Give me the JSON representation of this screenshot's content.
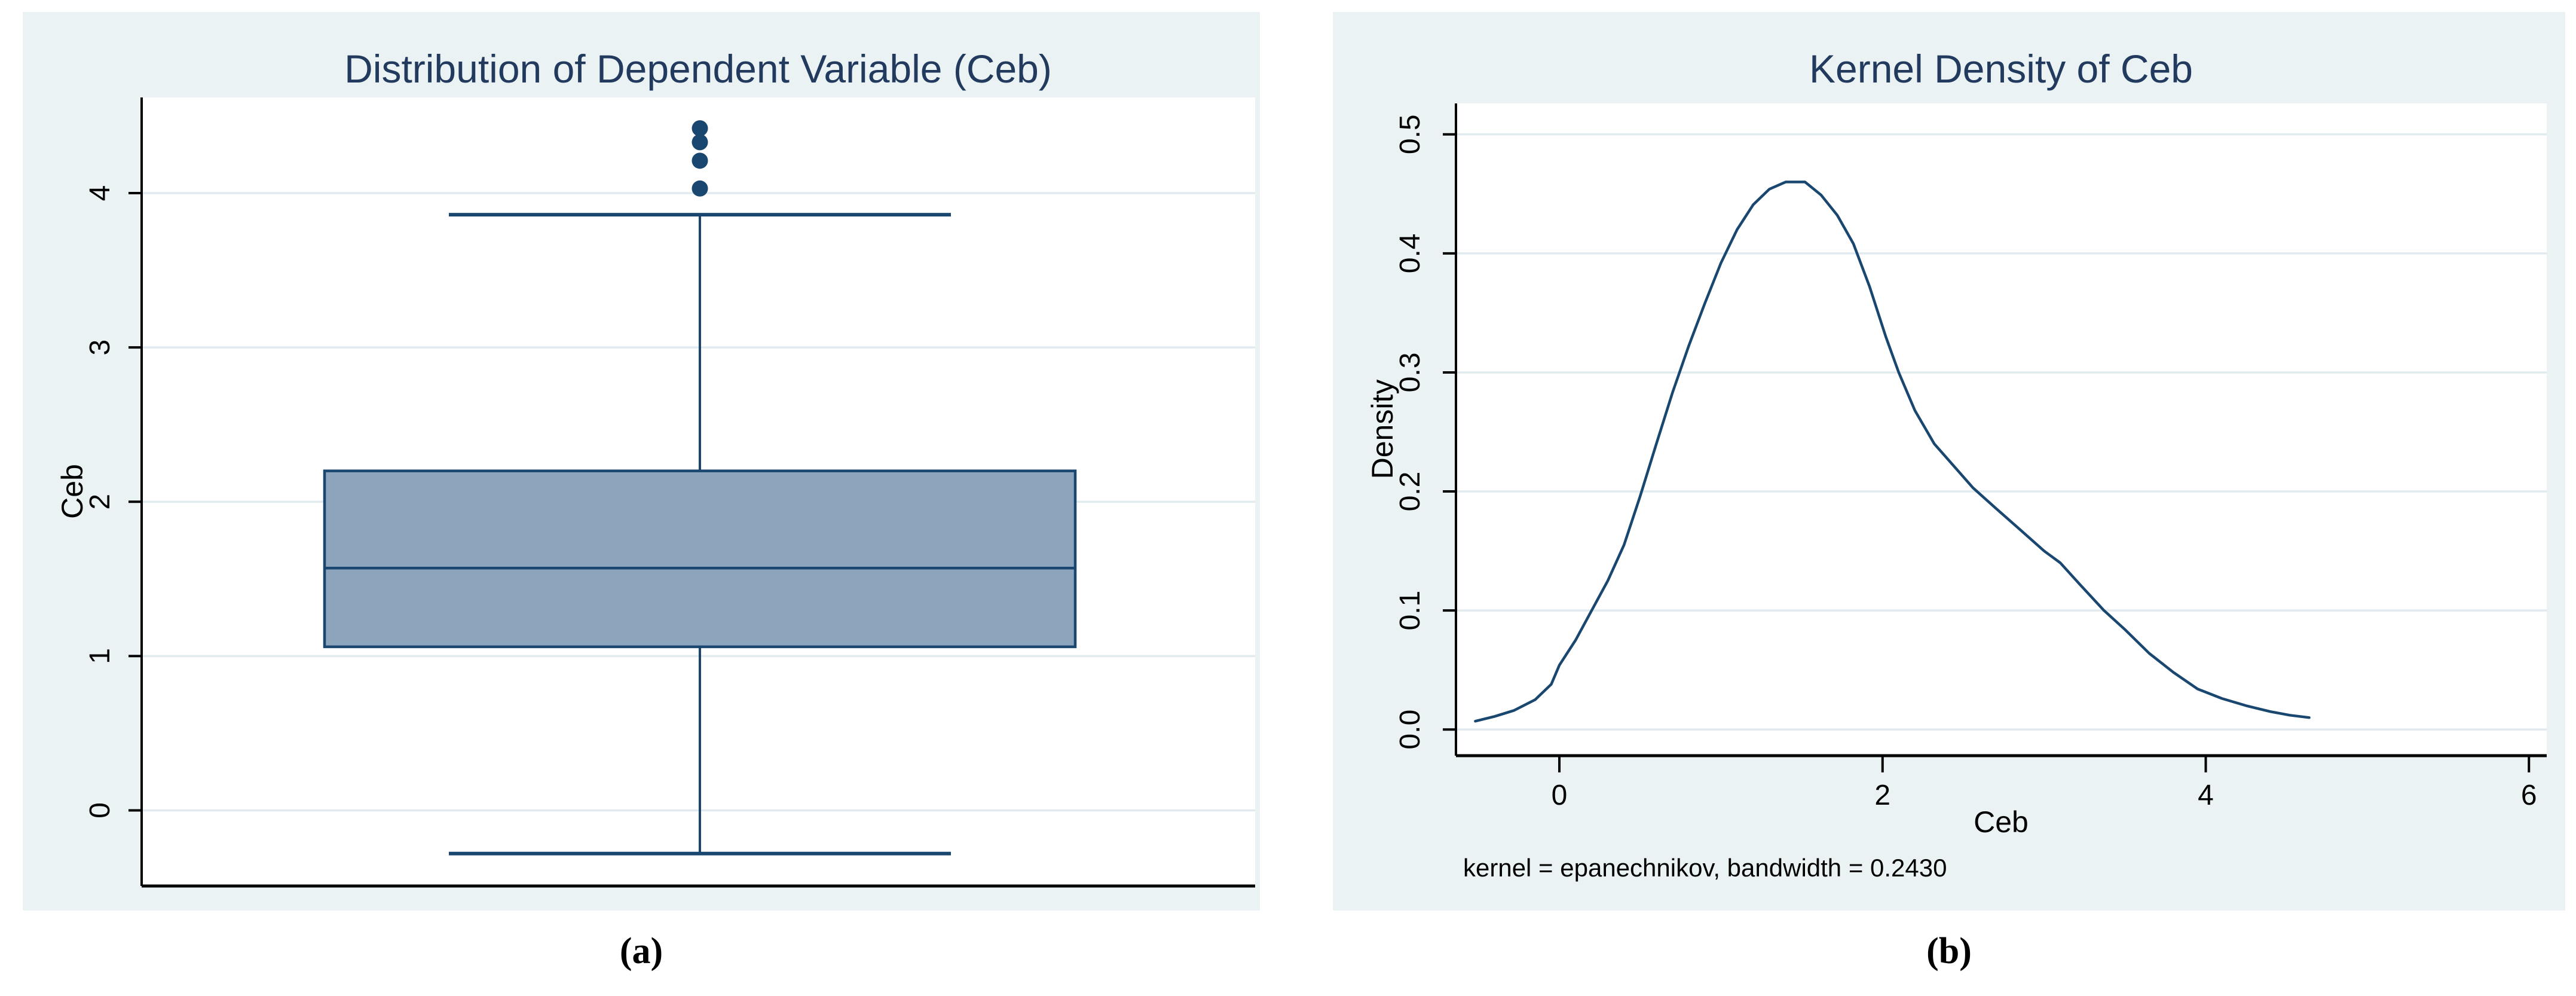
{
  "page": {
    "background": "#ffffff"
  },
  "colors": {
    "panel_bg": "#eaf2f3",
    "plot_bg": "#ffffff",
    "gridline": "#e1ebef",
    "axis": "#000000",
    "tick_label": "#000000",
    "title_text": "#223a5e",
    "line_navy": "#1a476f",
    "box_fill": "#8da4bd"
  },
  "figure_a": {
    "caption": "(a)",
    "title": "Distribution of Dependent Variable (Ceb)",
    "y_axis_title": "Ceb",
    "y_tick_labels": [
      "0",
      "1",
      "2",
      "3",
      "4"
    ]
  },
  "figure_b": {
    "caption": "(b)",
    "title": "Kernel Density of Ceb",
    "x_axis_title": "Ceb",
    "y_axis_title": "Density",
    "x_tick_labels": [
      "0",
      "2",
      "4",
      "6"
    ],
    "y_tick_labels": [
      "0.0",
      "0.1",
      "0.2",
      "0.3",
      "0.4",
      "0.5"
    ],
    "note": "kernel = epanechnikov, bandwidth = 0.2430"
  },
  "chart_data": [
    {
      "id": "ceb-boxplot",
      "type": "box",
      "title": "Distribution of Dependent Variable (Ceb)",
      "ylabel": "Ceb",
      "ylim": [
        -0.49,
        4.62
      ],
      "yticks": [
        0,
        1,
        2,
        3,
        4
      ],
      "grid": true,
      "stats": {
        "lower_whisker": -0.28,
        "q1": 1.06,
        "median": 1.57,
        "q3": 2.2,
        "upper_whisker": 3.86
      },
      "outliers": [
        4.03,
        4.21,
        4.33,
        4.42
      ]
    },
    {
      "id": "ceb-kernel-density",
      "type": "line",
      "title": "Kernel Density of Ceb",
      "xlabel": "Ceb",
      "ylabel": "Density",
      "xlim": [
        -0.64,
        6.11
      ],
      "ylim": [
        -0.022,
        0.526
      ],
      "xticks": [
        0,
        2,
        4,
        6
      ],
      "yticks": [
        0.0,
        0.1,
        0.2,
        0.3,
        0.4,
        0.5
      ],
      "grid": true,
      "legend": "none",
      "note": "kernel = epanechnikov, bandwidth = 0.2430",
      "points": [
        [
          -0.52,
          0.007
        ],
        [
          -0.4,
          0.011
        ],
        [
          -0.28,
          0.016
        ],
        [
          -0.15,
          0.025
        ],
        [
          -0.05,
          0.038
        ],
        [
          0.0,
          0.054
        ],
        [
          0.1,
          0.075
        ],
        [
          0.2,
          0.1
        ],
        [
          0.3,
          0.125
        ],
        [
          0.4,
          0.155
        ],
        [
          0.5,
          0.196
        ],
        [
          0.6,
          0.24
        ],
        [
          0.7,
          0.283
        ],
        [
          0.8,
          0.322
        ],
        [
          0.9,
          0.358
        ],
        [
          1.0,
          0.392
        ],
        [
          1.1,
          0.42
        ],
        [
          1.2,
          0.441
        ],
        [
          1.3,
          0.454
        ],
        [
          1.4,
          0.46
        ],
        [
          1.52,
          0.46
        ],
        [
          1.62,
          0.449
        ],
        [
          1.72,
          0.432
        ],
        [
          1.82,
          0.408
        ],
        [
          1.92,
          0.372
        ],
        [
          2.02,
          0.33
        ],
        [
          2.1,
          0.3
        ],
        [
          2.2,
          0.268
        ],
        [
          2.32,
          0.24
        ],
        [
          2.45,
          0.22
        ],
        [
          2.56,
          0.203
        ],
        [
          2.7,
          0.186
        ],
        [
          2.85,
          0.168
        ],
        [
          3.0,
          0.15
        ],
        [
          3.1,
          0.14
        ],
        [
          3.22,
          0.122
        ],
        [
          3.37,
          0.1
        ],
        [
          3.5,
          0.084
        ],
        [
          3.65,
          0.064
        ],
        [
          3.8,
          0.048
        ],
        [
          3.95,
          0.034
        ],
        [
          4.1,
          0.026
        ],
        [
          4.25,
          0.02
        ],
        [
          4.4,
          0.015
        ],
        [
          4.52,
          0.012
        ],
        [
          4.64,
          0.01
        ]
      ]
    }
  ]
}
